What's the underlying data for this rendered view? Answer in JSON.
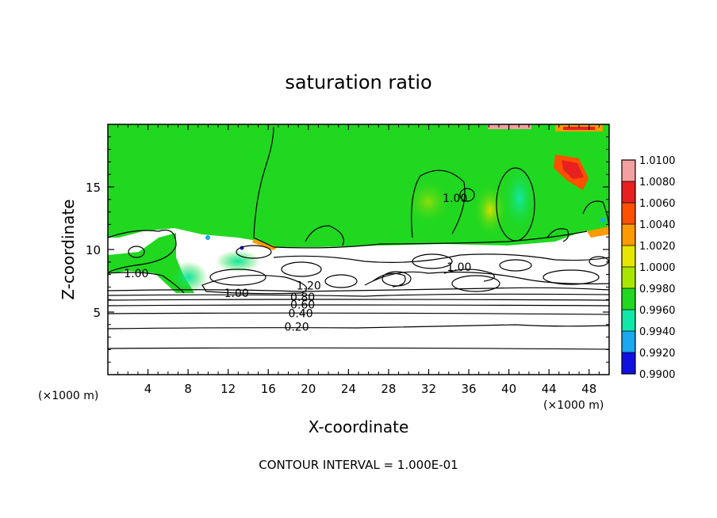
{
  "chart_data": {
    "type": "heatmap",
    "title": "saturation ratio",
    "xlabel": "X-coordinate",
    "ylabel": "Z-coordinate",
    "x_unit": "(×1000 m)",
    "z_unit": "(×1000 m)",
    "xlim": [
      0,
      50
    ],
    "ylim": [
      0,
      20
    ],
    "x_ticks": [
      "4",
      "8",
      "12",
      "16",
      "20",
      "24",
      "28",
      "32",
      "36",
      "40",
      "44",
      "48"
    ],
    "y_ticks": [
      "5",
      "10",
      "15"
    ],
    "colorbar": {
      "levels": [
        "1.0100",
        "1.0080",
        "1.0060",
        "1.0040",
        "1.0020",
        "1.0000",
        "0.9980",
        "0.9960",
        "0.9940",
        "0.9920",
        "0.9900"
      ],
      "colors": [
        "#f4a0a0",
        "#e82020",
        "#ff5000",
        "#ff9a00",
        "#e6e600",
        "#a8e600",
        "#20d820",
        "#10e8a8",
        "#1aa8f0",
        "#1010e0",
        "#600090"
      ]
    },
    "contour_labels": [
      {
        "text": "1.00",
        "x": 1.6,
        "z": 7.8
      },
      {
        "text": "1.00",
        "x": 11.6,
        "z": 6.2
      },
      {
        "text": "1.20",
        "x": 18.8,
        "z": 6.8
      },
      {
        "text": "0.80",
        "x": 18.2,
        "z": 5.9
      },
      {
        "text": "0.60",
        "x": 18.2,
        "z": 5.3
      },
      {
        "text": "0.40",
        "x": 18.0,
        "z": 4.6
      },
      {
        "text": "0.20",
        "x": 17.6,
        "z": 3.5
      },
      {
        "text": "1.00",
        "x": 33.8,
        "z": 8.3
      },
      {
        "text": "1.00",
        "x": 33.4,
        "z": 13.8
      }
    ],
    "footer": "CONTOUR INTERVAL = 1.000E-01"
  }
}
